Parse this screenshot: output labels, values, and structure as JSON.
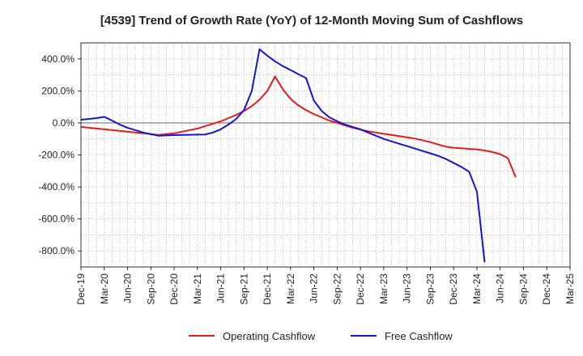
{
  "chart_data": {
    "type": "line",
    "title": "[4539]  Trend of Growth Rate (YoY) of 12-Month Moving Sum of Cashflows",
    "xlabel": "",
    "ylabel": "",
    "ylim": [
      -900,
      500
    ],
    "yticks": [
      400,
      200,
      0,
      -200,
      -400,
      -600,
      -800
    ],
    "ytick_labels": [
      "400.0%",
      "200.0%",
      "0.0%",
      "-200.0%",
      "-400.0%",
      "-600.0%",
      "-800.0%"
    ],
    "xtick_labels": [
      "Dec-19",
      "Mar-20",
      "Jun-20",
      "Sep-20",
      "Dec-20",
      "Mar-21",
      "Jun-21",
      "Sep-21",
      "Dec-21",
      "Mar-22",
      "Jun-22",
      "Sep-22",
      "Dec-22",
      "Mar-23",
      "Jun-23",
      "Sep-23",
      "Dec-23",
      "Mar-24",
      "Jun-24",
      "Sep-24",
      "Dec-24",
      "Mar-25"
    ],
    "x_months_total": 63,
    "grid": true,
    "legend_position": "bottom",
    "series": [
      {
        "name": "Operating Cashflow",
        "color": "#e8191a",
        "start_month": 0,
        "values": [
          -25,
          -30,
          -35,
          -40,
          -45,
          -50,
          -55,
          -60,
          -65,
          -70,
          -75,
          -70,
          -65,
          -55,
          -45,
          -35,
          -20,
          -5,
          10,
          30,
          50,
          75,
          105,
          145,
          200,
          290,
          210,
          150,
          110,
          80,
          55,
          35,
          15,
          0,
          -15,
          -30,
          -42,
          -52,
          -60,
          -68,
          -75,
          -82,
          -90,
          -98,
          -108,
          -120,
          -135,
          -148,
          -155,
          -158,
          -162,
          -165,
          -172,
          -182,
          -195,
          -220,
          -340
        ]
      },
      {
        "name": "Free Cashflow",
        "color": "#1414d2",
        "start_month": 0,
        "values": [
          20,
          25,
          30,
          38,
          15,
          -10,
          -30,
          -45,
          -60,
          -70,
          -80,
          -78,
          -76,
          -75,
          -74,
          -73,
          -72,
          -60,
          -40,
          -10,
          25,
          80,
          200,
          460,
          420,
          385,
          355,
          330,
          305,
          280,
          140,
          75,
          35,
          10,
          -10,
          -25,
          -40,
          -60,
          -80,
          -100,
          -115,
          -130,
          -145,
          -160,
          -175,
          -190,
          -205,
          -225,
          -250,
          -275,
          -305,
          -430,
          -870
        ]
      }
    ]
  }
}
